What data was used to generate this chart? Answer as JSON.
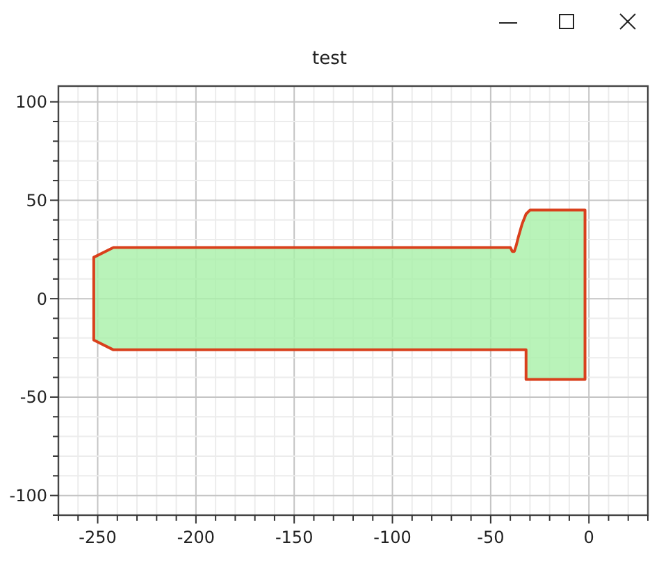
{
  "chart_data": {
    "type": "area",
    "title": "test",
    "x": [
      -252,
      -242,
      -40,
      -39,
      -38,
      -37,
      -36,
      -34,
      -32,
      -30,
      -2,
      -2,
      -32,
      -32,
      -242,
      -252
    ],
    "values": [
      21,
      26,
      26,
      24,
      24,
      27,
      31,
      38,
      43,
      45,
      45,
      -41,
      -41,
      -26,
      -26,
      -21
    ],
    "color": "#a8f0a8",
    "xlim": [
      -270,
      30
    ],
    "ylim": [
      -110,
      108
    ],
    "xticks": [
      {
        "value": -270,
        "label": null
      },
      {
        "value": -260,
        "label": null
      },
      -250,
      {
        "value": -240,
        "label": null
      },
      {
        "value": -230,
        "label": null
      },
      {
        "value": -220,
        "label": null
      },
      {
        "value": -210,
        "label": null
      },
      -200,
      {
        "value": -190,
        "label": null
      },
      {
        "value": -180,
        "label": null
      },
      {
        "value": -170,
        "label": null
      },
      {
        "value": -160,
        "label": null
      },
      -150,
      {
        "value": -140,
        "label": null
      },
      {
        "value": -130,
        "label": null
      },
      {
        "value": -120,
        "label": null
      },
      {
        "value": -110,
        "label": null
      },
      -100,
      {
        "value": -90,
        "label": null
      },
      {
        "value": -80,
        "label": null
      },
      {
        "value": -70,
        "label": null
      },
      {
        "value": -60,
        "label": null
      },
      -50,
      {
        "value": -40,
        "label": null
      },
      {
        "value": -30,
        "label": null
      },
      {
        "value": -20,
        "label": null
      },
      {
        "value": -10,
        "label": null
      },
      0,
      {
        "value": 10,
        "label": null
      },
      {
        "value": 20,
        "label": null
      },
      {
        "value": 30,
        "label": null
      }
    ],
    "yticks": [
      {
        "value": -110,
        "label": null
      },
      -100,
      {
        "value": -90,
        "label": null
      },
      {
        "value": -80,
        "label": null
      },
      {
        "value": -70,
        "label": null
      },
      {
        "value": -60,
        "label": null
      },
      -50,
      {
        "value": -40,
        "label": null
      },
      {
        "value": -30,
        "label": null
      },
      {
        "value": -20,
        "label": null
      },
      {
        "value": -10,
        "label": null
      },
      0,
      {
        "value": 10,
        "label": null
      },
      {
        "value": 20,
        "label": null
      },
      {
        "value": 30,
        "label": null
      },
      {
        "value": 40,
        "label": null
      },
      50,
      {
        "value": 60,
        "label": null
      },
      {
        "value": 70,
        "label": null
      },
      {
        "value": 80,
        "label": null
      },
      {
        "value": 90,
        "label": null
      },
      100
    ],
    "grid": true
  }
}
